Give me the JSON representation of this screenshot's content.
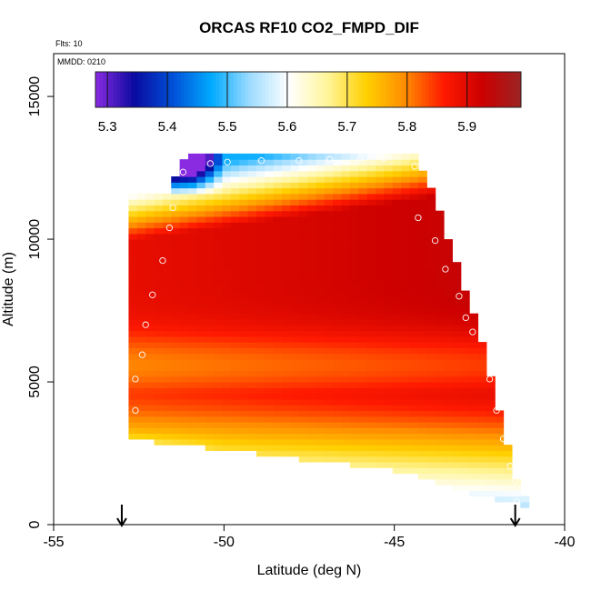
{
  "chart_data": {
    "type": "heatmap",
    "title": "ORCAS RF10 CO2_FMPD_DIF",
    "flights_label": "Flts: 10",
    "mmdd_label": "MMDD: 0210",
    "xlabel": "Latitude (deg N)",
    "ylabel": "Altitude (m)",
    "xlim": [
      -55,
      -40
    ],
    "ylim": [
      0,
      16500
    ],
    "x_ticks": [
      -55,
      -50,
      -45,
      -40
    ],
    "x_tick_labels": [
      "-55",
      "-50",
      "-45",
      "-40"
    ],
    "y_ticks": [
      0,
      5000,
      10000,
      15000
    ],
    "y_tick_labels": [
      "0",
      "5000",
      "10000",
      "15000"
    ],
    "colorbar": {
      "min": 5.28,
      "max": 5.99,
      "ticks": [
        5.3,
        5.4,
        5.5,
        5.6,
        5.7,
        5.8,
        5.9
      ],
      "tick_labels": [
        "5.3",
        "5.4",
        "5.5",
        "5.6",
        "5.7",
        "5.8",
        "5.9"
      ],
      "colors": [
        "#8a2be2",
        "#0a0aa0",
        "#0050d8",
        "#00aaff",
        "#9fdcff",
        "#ffffff",
        "#fff59a",
        "#ffd000",
        "#ff8c00",
        "#ff1a00",
        "#cc0000",
        "#9b2424"
      ]
    },
    "column_width_deg": 0.25,
    "row_height_m": 200,
    "domain_top": [
      [
        -51.6,
        11500
      ],
      [
        -51.3,
        12600
      ],
      [
        -50.8,
        13000
      ],
      [
        -48.0,
        13100
      ],
      [
        -44.5,
        13050
      ],
      [
        -44.0,
        12100
      ],
      [
        -43.2,
        9200
      ],
      [
        -42.5,
        6800
      ],
      [
        -41.5,
        2000
      ],
      [
        -41.25,
        900
      ]
    ],
    "domain_bottom": [
      [
        -52.8,
        3100
      ],
      [
        -51.5,
        2800
      ],
      [
        -49.8,
        2600
      ],
      [
        -47.0,
        2200
      ],
      [
        -44.5,
        1800
      ],
      [
        -42.8,
        1100
      ],
      [
        -41.25,
        700
      ]
    ],
    "arrows_x": [
      -53.0,
      -41.45
    ],
    "flight_points": [
      [
        -50.4,
        12650
      ],
      [
        -51.2,
        12350
      ],
      [
        -49.9,
        12700
      ],
      [
        -48.9,
        12750
      ],
      [
        -47.8,
        12750
      ],
      [
        -46.9,
        12800
      ],
      [
        -46.0,
        12850
      ],
      [
        -45.3,
        12850
      ],
      [
        -44.4,
        12550
      ],
      [
        -51.5,
        11100
      ],
      [
        -51.6,
        10400
      ],
      [
        -51.8,
        9250
      ],
      [
        -52.1,
        8050
      ],
      [
        -52.3,
        7000
      ],
      [
        -52.4,
        5950
      ],
      [
        -52.6,
        5100
      ],
      [
        -52.6,
        4000
      ],
      [
        -44.3,
        10750
      ],
      [
        -43.8,
        9950
      ],
      [
        -43.5,
        8950
      ],
      [
        -43.1,
        8000
      ],
      [
        -42.9,
        7250
      ],
      [
        -42.7,
        6750
      ],
      [
        -42.2,
        5100
      ],
      [
        -42.0,
        4000
      ],
      [
        -41.8,
        3000
      ],
      [
        -41.6,
        2050
      ],
      [
        -41.45,
        1550
      ],
      [
        -41.4,
        800
      ]
    ]
  }
}
